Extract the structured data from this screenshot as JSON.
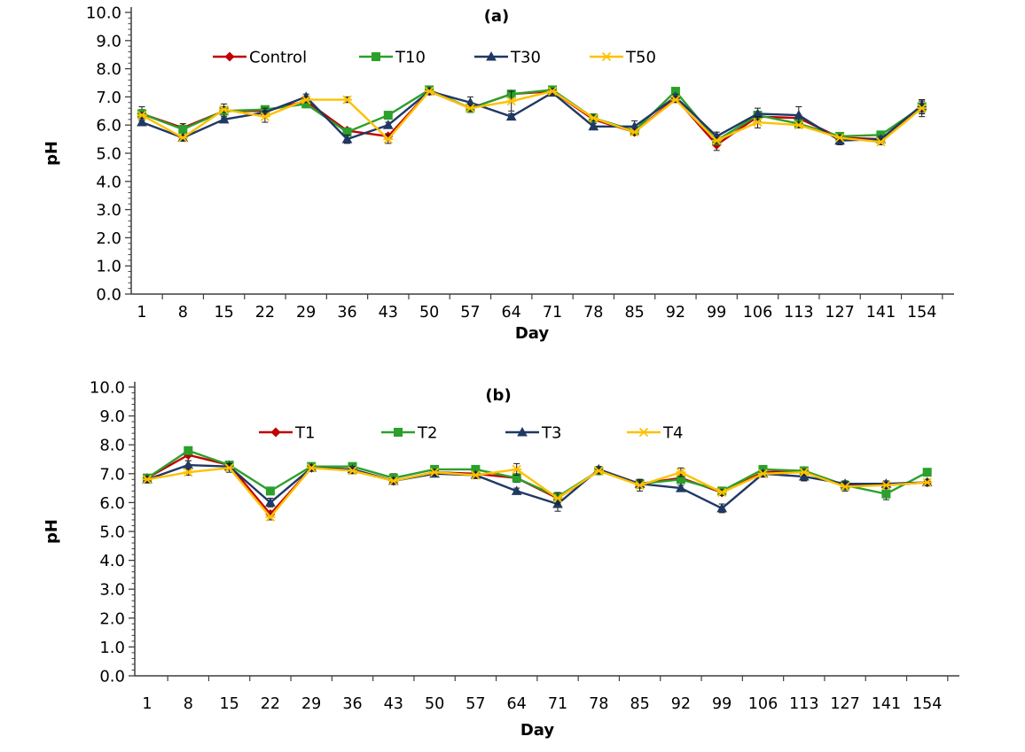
{
  "page": {
    "background": "#ffffff",
    "text_color": "#000000",
    "axis_color": "#3f3f3f",
    "error_bar_color": "#1a1a1a"
  },
  "chart_data": [
    {
      "type": "line",
      "panel_label": "(a)",
      "xlabel": "Day",
      "ylabel": "pH",
      "ylim": [
        0.0,
        10.0
      ],
      "ytick_step": 1.0,
      "ytick_labels": [
        "0.0",
        "1.0",
        "2.0",
        "3.0",
        "4.0",
        "5.0",
        "6.0",
        "7.0",
        "8.0",
        "9.0",
        "10.0"
      ],
      "grid": false,
      "legend_position": "top-center-row",
      "categories": [
        "1",
        "8",
        "15",
        "22",
        "29",
        "36",
        "43",
        "50",
        "57",
        "64",
        "71",
        "78",
        "85",
        "92",
        "99",
        "106",
        "113",
        "127",
        "141",
        "154"
      ],
      "series": [
        {
          "name": "Control",
          "color": "#c00000",
          "marker": "diamond",
          "values": [
            6.4,
            5.9,
            6.5,
            6.5,
            6.85,
            5.8,
            5.6,
            7.2,
            6.6,
            7.1,
            7.2,
            6.2,
            5.75,
            6.95,
            5.3,
            6.3,
            6.25,
            5.55,
            5.5,
            6.65
          ],
          "errors": [
            0.25,
            0.15,
            0.25,
            0.15,
            0.1,
            0.1,
            0.1,
            0.1,
            0.1,
            0.1,
            0.1,
            0.1,
            0.1,
            0.1,
            0.2,
            0.15,
            0.1,
            0.15,
            0.1,
            0.2
          ]
        },
        {
          "name": "T10",
          "color": "#2ba02b",
          "marker": "square",
          "values": [
            6.4,
            5.85,
            6.5,
            6.55,
            6.75,
            5.75,
            6.35,
            7.25,
            6.6,
            7.1,
            7.25,
            6.25,
            5.8,
            7.2,
            5.45,
            6.35,
            6.05,
            5.6,
            5.65,
            6.65
          ],
          "errors": [
            0.15,
            0.1,
            0.15,
            0.1,
            0.1,
            0.1,
            0.1,
            0.1,
            0.15,
            0.1,
            0.1,
            0.15,
            0.1,
            0.1,
            0.15,
            0.1,
            0.1,
            0.1,
            0.1,
            0.25
          ]
        },
        {
          "name": "T30",
          "color": "#203864",
          "marker": "triangle",
          "values": [
            6.1,
            5.55,
            6.2,
            6.45,
            7.0,
            5.5,
            6.0,
            7.2,
            6.8,
            6.3,
            7.15,
            5.95,
            5.95,
            7.0,
            5.6,
            6.4,
            6.35,
            5.45,
            5.5,
            6.7
          ],
          "errors": [
            0.1,
            0.1,
            0.1,
            0.15,
            0.1,
            0.15,
            0.1,
            0.1,
            0.2,
            0.1,
            0.1,
            0.1,
            0.2,
            0.1,
            0.15,
            0.2,
            0.3,
            0.15,
            0.1,
            0.2
          ]
        },
        {
          "name": "T50",
          "color": "#ffc000",
          "marker": "x",
          "values": [
            6.35,
            5.55,
            6.55,
            6.3,
            6.9,
            6.9,
            5.5,
            7.2,
            6.6,
            6.85,
            7.2,
            6.25,
            5.75,
            6.9,
            5.45,
            6.1,
            6.0,
            5.55,
            5.4,
            6.6
          ],
          "errors": [
            0.1,
            0.1,
            0.1,
            0.2,
            0.1,
            0.1,
            0.15,
            0.1,
            0.1,
            0.35,
            0.1,
            0.1,
            0.1,
            0.1,
            0.1,
            0.2,
            0.1,
            0.1,
            0.1,
            0.3
          ]
        }
      ]
    },
    {
      "type": "line",
      "panel_label": "(b)",
      "xlabel": "Day",
      "ylabel": "pH",
      "ylim": [
        0.0,
        10.0
      ],
      "ytick_step": 1.0,
      "ytick_labels": [
        "0.0",
        "1.0",
        "2.0",
        "3.0",
        "4.0",
        "5.0",
        "6.0",
        "7.0",
        "8.0",
        "9.0",
        "10.0"
      ],
      "grid": false,
      "legend_position": "top-center-row",
      "categories": [
        "1",
        "8",
        "15",
        "22",
        "29",
        "36",
        "43",
        "50",
        "57",
        "64",
        "71",
        "78",
        "85",
        "92",
        "99",
        "106",
        "113",
        "127",
        "141",
        "154"
      ],
      "series": [
        {
          "name": "T1",
          "color": "#c00000",
          "marker": "diamond",
          "values": [
            6.85,
            7.65,
            7.3,
            5.6,
            7.2,
            7.15,
            6.75,
            7.05,
            7.0,
            6.85,
            6.15,
            7.1,
            6.65,
            6.85,
            6.35,
            7.05,
            7.1,
            6.6,
            6.6,
            6.7
          ],
          "errors": [
            0.1,
            0.2,
            0.1,
            0.1,
            0.1,
            0.1,
            0.1,
            0.1,
            0.1,
            0.1,
            0.15,
            0.1,
            0.15,
            0.1,
            0.1,
            0.1,
            0.1,
            0.15,
            0.1,
            0.1
          ]
        },
        {
          "name": "T2",
          "color": "#2ba02b",
          "marker": "square",
          "values": [
            6.85,
            7.8,
            7.3,
            6.4,
            7.25,
            7.25,
            6.85,
            7.15,
            7.15,
            6.85,
            6.2,
            7.1,
            6.65,
            6.8,
            6.4,
            7.15,
            7.1,
            6.6,
            6.3,
            7.05
          ],
          "errors": [
            0.1,
            0.1,
            0.1,
            0.1,
            0.1,
            0.1,
            0.15,
            0.1,
            0.1,
            0.15,
            0.1,
            0.1,
            0.15,
            0.1,
            0.1,
            0.1,
            0.1,
            0.1,
            0.2,
            0.1
          ]
        },
        {
          "name": "T3",
          "color": "#203864",
          "marker": "triangle",
          "values": [
            6.8,
            7.3,
            7.25,
            6.0,
            7.2,
            7.15,
            6.75,
            7.0,
            6.95,
            6.4,
            5.95,
            7.15,
            6.65,
            6.5,
            5.8,
            7.0,
            6.9,
            6.65,
            6.65,
            6.7
          ],
          "errors": [
            0.1,
            0.15,
            0.1,
            0.15,
            0.1,
            0.1,
            0.1,
            0.1,
            0.1,
            0.1,
            0.25,
            0.1,
            0.1,
            0.1,
            0.15,
            0.1,
            0.15,
            0.1,
            0.1,
            0.1
          ]
        },
        {
          "name": "T4",
          "color": "#ffc000",
          "marker": "x",
          "values": [
            6.8,
            7.05,
            7.2,
            5.5,
            7.2,
            7.1,
            6.75,
            7.05,
            6.95,
            7.15,
            6.15,
            7.1,
            6.6,
            7.05,
            6.35,
            7.0,
            7.05,
            6.55,
            6.6,
            6.7
          ],
          "errors": [
            0.1,
            0.1,
            0.15,
            0.1,
            0.1,
            0.1,
            0.1,
            0.1,
            0.1,
            0.2,
            0.2,
            0.1,
            0.2,
            0.15,
            0.1,
            0.1,
            0.1,
            0.15,
            0.1,
            0.1
          ]
        }
      ]
    }
  ]
}
